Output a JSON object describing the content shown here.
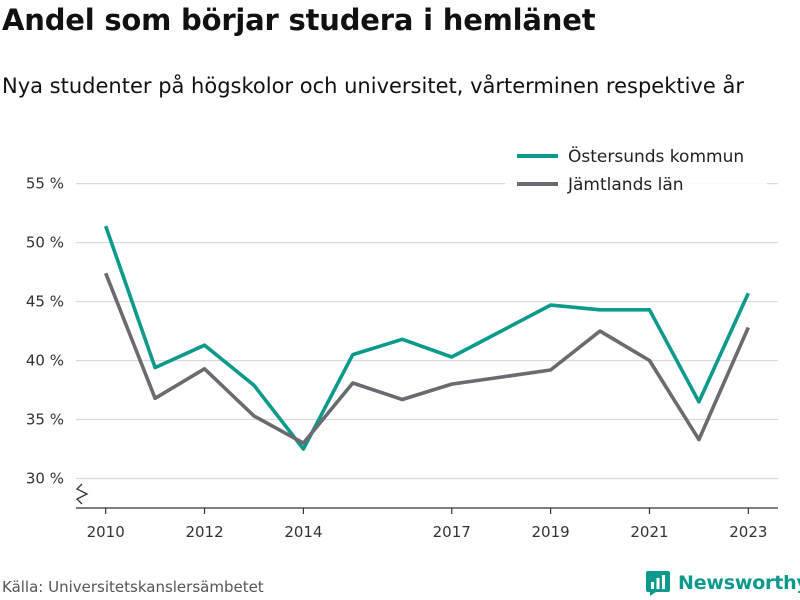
{
  "title": "Andel som börjar studera i hemlänet",
  "subtitle": "Nya studenter på högskolor och universitet, vårterminen respektive år",
  "source": "Källa: Universitetskanslersämbetet",
  "brand": {
    "name": "Newsworthy",
    "color": "#0b9a8c"
  },
  "chart_data": {
    "type": "line",
    "x": [
      2010,
      2011,
      2012,
      2013,
      2014,
      2015,
      2016,
      2017,
      2018,
      2019,
      2020,
      2021,
      2022,
      2023
    ],
    "x_ticks": [
      2010,
      2012,
      2014,
      2017,
      2019,
      2021,
      2023
    ],
    "y_ticks": [
      30,
      35,
      40,
      45,
      50,
      55
    ],
    "y_tick_labels": [
      "30 %",
      "35 %",
      "40 %",
      "45 %",
      "50 %",
      "55 %"
    ],
    "ylim": [
      27.5,
      57
    ],
    "xlim": [
      2009.4,
      2023.6
    ],
    "grid": true,
    "axis_break": true,
    "legend_position": "top-right",
    "series": [
      {
        "name": "Östersunds kommun",
        "color": "#0b9a8c",
        "values": [
          51.4,
          39.4,
          41.3,
          37.9,
          32.5,
          40.5,
          41.8,
          40.3,
          42.5,
          44.7,
          44.3,
          44.3,
          36.5,
          45.7
        ]
      },
      {
        "name": "Jämtlands län",
        "color": "#6b6a70",
        "values": [
          47.4,
          36.8,
          39.3,
          35.3,
          33.0,
          38.1,
          36.7,
          38.0,
          38.6,
          39.2,
          42.5,
          40.0,
          33.3,
          42.8
        ]
      }
    ]
  }
}
